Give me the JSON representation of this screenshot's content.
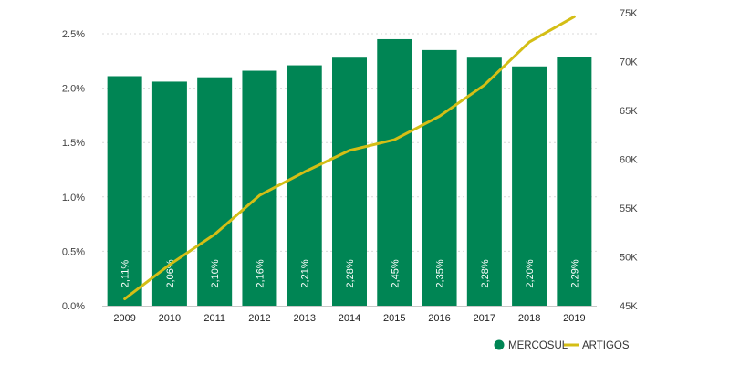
{
  "chart_data": {
    "type": "bar",
    "categories": [
      "2009",
      "2010",
      "2011",
      "2012",
      "2013",
      "2014",
      "2015",
      "2016",
      "2017",
      "2018",
      "2019"
    ],
    "series": [
      {
        "name": "MERCOSUL",
        "type": "bar",
        "axis": "left",
        "values": [
          2.11,
          2.06,
          2.1,
          2.16,
          2.21,
          2.28,
          2.45,
          2.35,
          2.28,
          2.2,
          2.29
        ],
        "labels": [
          "2,11%",
          "2,06%",
          "2,10%",
          "2,16%",
          "2,21%",
          "2,28%",
          "2,45%",
          "2,35%",
          "2,28%",
          "2,20%",
          "2,29%"
        ],
        "color": "#008554"
      },
      {
        "name": "ARTIGOS",
        "type": "line",
        "axis": "right",
        "values": [
          45700,
          49200,
          52300,
          56300,
          58700,
          60900,
          62000,
          64400,
          67600,
          72000,
          74600
        ],
        "color": "#D4BE15"
      }
    ],
    "y_left": {
      "range": [
        0,
        2.5
      ],
      "ticks": [
        0,
        0.5,
        1.0,
        1.5,
        2.0,
        2.5
      ],
      "tick_labels": [
        "0.0%",
        "0.5%",
        "1.0%",
        "1.5%",
        "2.0%",
        "2.5%"
      ]
    },
    "y_right": {
      "range": [
        45000,
        75000
      ],
      "ticks": [
        45000,
        50000,
        55000,
        60000,
        65000,
        70000,
        75000
      ],
      "tick_labels": [
        "45K",
        "50K",
        "55K",
        "60K",
        "65K",
        "70K",
        "75K"
      ]
    },
    "grid": true,
    "legend_position": "bottom-right"
  }
}
